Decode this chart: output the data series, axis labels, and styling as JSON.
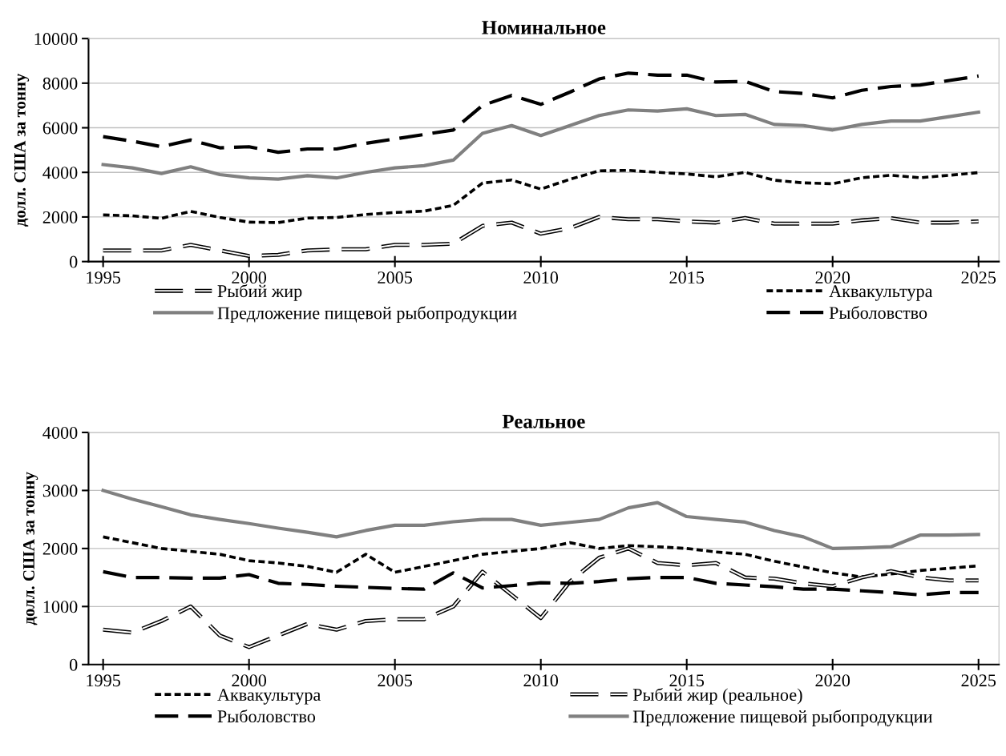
{
  "chart_data": [
    {
      "type": "line",
      "title": "Номинальное",
      "ylabel": "долл. США за тонну",
      "x": [
        1995,
        1996,
        1997,
        1998,
        1999,
        2000,
        2001,
        2002,
        2003,
        2004,
        2005,
        2006,
        2007,
        2008,
        2009,
        2010,
        2011,
        2012,
        2013,
        2014,
        2015,
        2016,
        2017,
        2018,
        2019,
        2020,
        2021,
        2022,
        2023,
        2024,
        2025
      ],
      "xlim": [
        1994.5,
        2025.7
      ],
      "xticks": [
        1995,
        2000,
        2005,
        2010,
        2015,
        2020,
        2025
      ],
      "ylim": [
        0,
        10000
      ],
      "yticks": [
        0,
        2000,
        4000,
        6000,
        8000,
        10000
      ],
      "grid": "y",
      "legend": "bottom",
      "marker": "none",
      "series": [
        {
          "name": "Рыбий жир",
          "color": "#000000",
          "line_style": "dashed",
          "values": [
            500,
            500,
            500,
            750,
            500,
            250,
            300,
            500,
            550,
            550,
            750,
            750,
            800,
            1600,
            1750,
            1250,
            1500,
            2000,
            1900,
            1900,
            1800,
            1750,
            1950,
            1700,
            1700,
            1700,
            1850,
            1950,
            1750,
            1750,
            1800
          ]
        },
        {
          "name": "Аквакультура",
          "color": "#000000",
          "line_style": "dotted",
          "values": [
            2090,
            2050,
            1940,
            2250,
            1980,
            1770,
            1750,
            1950,
            1980,
            2110,
            2200,
            2260,
            2520,
            3520,
            3660,
            3250,
            3690,
            4070,
            4090,
            4000,
            3930,
            3800,
            4000,
            3650,
            3530,
            3490,
            3760,
            3870,
            3760,
            3870,
            3990
          ]
        },
        {
          "name": "Предложение пищевой рыбопродукции",
          "color": "#808080",
          "line_style": "solid",
          "values": [
            4350,
            4200,
            3950,
            4250,
            3900,
            3750,
            3700,
            3850,
            3750,
            4000,
            4200,
            4300,
            4550,
            5750,
            6100,
            5650,
            6100,
            6550,
            6800,
            6750,
            6850,
            6550,
            6600,
            6150,
            6100,
            5900,
            6150,
            6300,
            6300,
            6500,
            6700
          ]
        },
        {
          "name": "Рыболовство",
          "color": "#000000",
          "line_style": "dashed",
          "values": [
            5600,
            5400,
            5150,
            5450,
            5100,
            5150,
            4900,
            5050,
            5050,
            5300,
            5500,
            5700,
            5900,
            7000,
            7450,
            7050,
            7600,
            8190,
            8450,
            8360,
            8360,
            8050,
            8080,
            7620,
            7540,
            7340,
            7680,
            7850,
            7920,
            8120,
            8320
          ]
        }
      ]
    },
    {
      "type": "line",
      "title": "Реальное",
      "ylabel": "долл. США за тонну",
      "x": [
        1995,
        1996,
        1997,
        1998,
        1999,
        2000,
        2001,
        2002,
        2003,
        2004,
        2005,
        2006,
        2007,
        2008,
        2009,
        2010,
        2011,
        2012,
        2013,
        2014,
        2015,
        2016,
        2017,
        2018,
        2019,
        2020,
        2021,
        2022,
        2023,
        2024,
        2025
      ],
      "xlim": [
        1994.5,
        2025.7
      ],
      "xticks": [
        1995,
        2000,
        2005,
        2010,
        2015,
        2020,
        2025
      ],
      "ylim": [
        0,
        4000
      ],
      "yticks": [
        0,
        1000,
        2000,
        3000,
        4000
      ],
      "grid": "y",
      "legend": "bottom",
      "marker": "none",
      "series": [
        {
          "name": "Аквакультура",
          "color": "#000000",
          "line_style": "dotted",
          "values": [
            2200,
            2100,
            2000,
            1950,
            1900,
            1790,
            1750,
            1690,
            1590,
            1900,
            1590,
            1690,
            1790,
            1900,
            1950,
            2000,
            2100,
            2000,
            2050,
            2030,
            2000,
            1940,
            1900,
            1780,
            1680,
            1580,
            1510,
            1560,
            1620,
            1660,
            1700
          ]
        },
        {
          "name": "Рыбий жир (реальное)",
          "color": "#000000",
          "line_style": "dashed",
          "values": [
            600,
            550,
            750,
            1000,
            500,
            300,
            500,
            700,
            600,
            750,
            780,
            780,
            1000,
            1600,
            1200,
            800,
            1430,
            1840,
            2000,
            1750,
            1710,
            1750,
            1500,
            1480,
            1400,
            1350,
            1500,
            1610,
            1500,
            1450,
            1450
          ]
        },
        {
          "name": "Рыболовство",
          "color": "#000000",
          "line_style": "dashed",
          "values": [
            1600,
            1500,
            1500,
            1490,
            1490,
            1550,
            1400,
            1380,
            1350,
            1330,
            1310,
            1300,
            1580,
            1320,
            1360,
            1410,
            1400,
            1430,
            1480,
            1500,
            1500,
            1400,
            1370,
            1340,
            1300,
            1300,
            1270,
            1240,
            1200,
            1240,
            1240
          ]
        },
        {
          "name": "Предложение пищевой рыбопродукции",
          "color": "#808080",
          "line_style": "solid",
          "values": [
            3000,
            2850,
            2720,
            2580,
            2500,
            2430,
            2350,
            2280,
            2200,
            2310,
            2400,
            2400,
            2460,
            2500,
            2500,
            2400,
            2450,
            2500,
            2700,
            2790,
            2550,
            2500,
            2455,
            2310,
            2200,
            2000,
            2010,
            2030,
            2230,
            2230,
            2240
          ]
        }
      ]
    }
  ]
}
